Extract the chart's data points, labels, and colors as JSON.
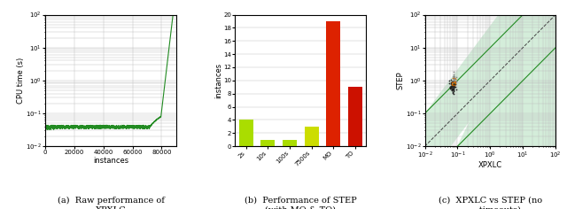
{
  "fig_width": 6.4,
  "fig_height": 2.36,
  "fig_dpi": 100,
  "panel_a": {
    "xlabel": "instances",
    "ylabel": "CPU time (s)",
    "xlim": [
      0,
      90000
    ],
    "xticks": [
      0,
      20000,
      40000,
      60000,
      80000
    ],
    "xtick_labels": [
      "0",
      "20000",
      "40000",
      "60000",
      "80000"
    ],
    "line_color": "#228B22",
    "caption": "(a)  Raw performance of\nXPXLC"
  },
  "panel_b": {
    "ylabel": "instances",
    "ylim": [
      0,
      20
    ],
    "yticks": [
      0,
      2,
      4,
      6,
      8,
      10,
      12,
      14,
      16,
      18,
      20
    ],
    "categories": [
      "2s",
      "10s",
      "100s",
      "7500s",
      "MO",
      "TO"
    ],
    "values": [
      4,
      1,
      1,
      3,
      19,
      9
    ],
    "bar_colors": [
      "#AADD00",
      "#AADD00",
      "#AADD00",
      "#CCDD00",
      "#DD2200",
      "#CC1100"
    ],
    "caption": "(b)  Performance of STEP\n(with MO & TO)"
  },
  "panel_c": {
    "xlabel": "XPXLC",
    "ylabel": "STEP",
    "xlim": [
      0.01,
      100.0
    ],
    "ylim": [
      0.01,
      100.0
    ],
    "shading_color": "#d4edda",
    "diagonal_color": "#444444",
    "band_color": "#228B22",
    "scatter_x_dark": [
      0.065,
      0.068,
      0.07,
      0.072,
      0.074,
      0.075,
      0.076,
      0.077,
      0.078,
      0.079,
      0.067,
      0.069,
      0.071,
      0.073,
      0.074,
      0.075,
      0.076,
      0.077,
      0.078,
      0.08,
      0.066,
      0.068,
      0.07,
      0.072,
      0.073,
      0.075,
      0.076,
      0.077,
      0.079,
      0.081,
      0.065,
      0.067,
      0.069,
      0.071,
      0.073,
      0.074,
      0.075,
      0.076,
      0.078,
      0.08,
      0.066,
      0.068,
      0.07,
      0.072,
      0.074,
      0.075,
      0.077,
      0.078,
      0.08,
      0.082,
      0.067,
      0.069,
      0.071,
      0.073,
      0.075,
      0.076,
      0.078,
      0.079,
      0.081,
      0.083
    ],
    "scatter_y_dark": [
      0.45,
      0.5,
      0.55,
      0.6,
      0.65,
      0.7,
      0.75,
      0.8,
      0.85,
      0.9,
      0.48,
      0.53,
      0.58,
      0.63,
      0.68,
      0.73,
      0.78,
      0.83,
      0.88,
      0.93,
      0.47,
      0.52,
      0.57,
      0.62,
      0.67,
      0.72,
      0.77,
      0.82,
      0.87,
      0.92,
      0.46,
      0.51,
      0.56,
      0.61,
      0.66,
      0.71,
      0.76,
      0.81,
      0.86,
      0.91,
      0.49,
      0.54,
      0.59,
      0.64,
      0.69,
      0.74,
      0.79,
      0.84,
      0.89,
      0.94,
      0.44,
      0.49,
      0.54,
      0.59,
      0.64,
      0.69,
      0.74,
      0.79,
      0.84,
      0.89
    ],
    "scatter_color_dark": "#222222",
    "scatter_color_orange": "#CC6600",
    "scatter_color_gray": "#888888",
    "caption": "(c)  XPXLC vs STEP (no\n       timeouts)"
  }
}
